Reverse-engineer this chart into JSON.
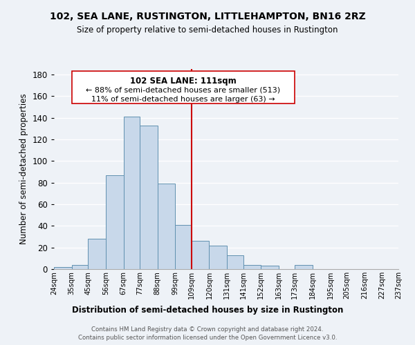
{
  "title": "102, SEA LANE, RUSTINGTON, LITTLEHAMPTON, BN16 2RZ",
  "subtitle": "Size of property relative to semi-detached houses in Rustington",
  "xlabel": "Distribution of semi-detached houses by size in Rustington",
  "ylabel": "Number of semi-detached properties",
  "bin_edges": [
    24,
    35,
    45,
    56,
    67,
    77,
    88,
    99,
    109,
    120,
    131,
    141,
    152,
    163,
    173,
    184,
    195,
    205,
    216,
    227,
    237
  ],
  "bin_labels": [
    "24sqm",
    "35sqm",
    "45sqm",
    "56sqm",
    "67sqm",
    "77sqm",
    "88sqm",
    "99sqm",
    "109sqm",
    "120sqm",
    "131sqm",
    "141sqm",
    "152sqm",
    "163sqm",
    "173sqm",
    "184sqm",
    "195sqm",
    "205sqm",
    "216sqm",
    "227sqm",
    "237sqm"
  ],
  "counts": [
    2,
    4,
    28,
    87,
    141,
    133,
    79,
    41,
    26,
    22,
    13,
    4,
    3,
    0,
    4,
    0,
    0,
    0,
    0,
    0
  ],
  "bar_color": "#c8d8ea",
  "bar_edge_color": "#6090b0",
  "vline_x": 109,
  "vline_color": "#cc0000",
  "annotation_title": "102 SEA LANE: 111sqm",
  "annotation_line1": "← 88% of semi-detached houses are smaller (513)",
  "annotation_line2": "11% of semi-detached houses are larger (63) →",
  "annotation_box_color": "#ffffff",
  "annotation_box_edge": "#cc0000",
  "ylim": [
    0,
    185
  ],
  "yticks": [
    0,
    20,
    40,
    60,
    80,
    100,
    120,
    140,
    160,
    180
  ],
  "footer_line1": "Contains HM Land Registry data © Crown copyright and database right 2024.",
  "footer_line2": "Contains public sector information licensed under the Open Government Licence v3.0.",
  "background_color": "#eef2f7",
  "grid_color": "#ffffff"
}
